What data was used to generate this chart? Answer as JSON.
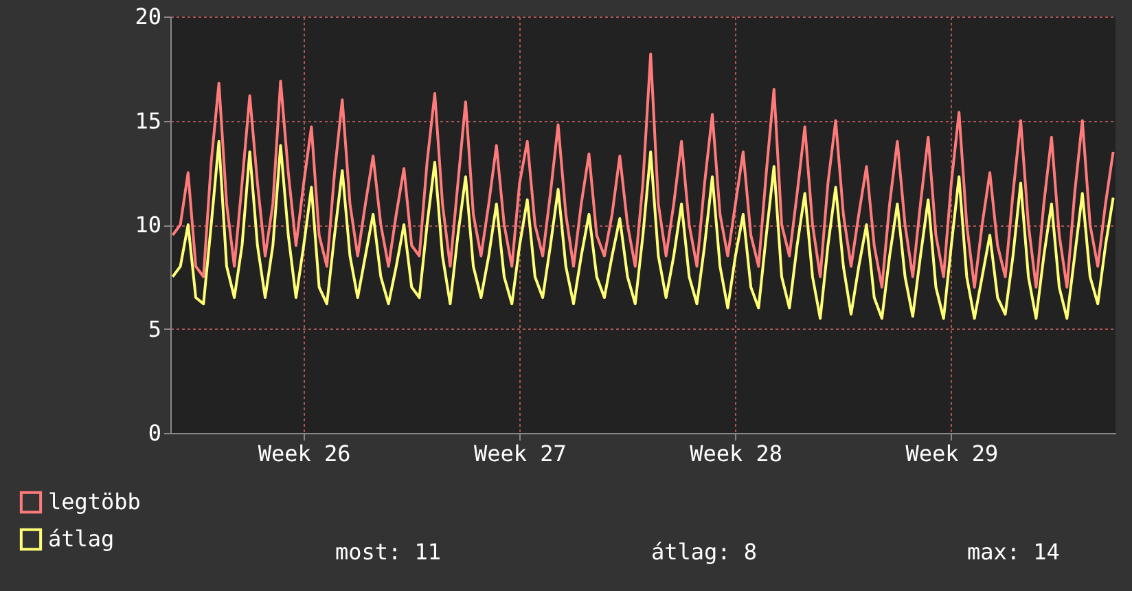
{
  "chart_data": {
    "type": "line",
    "categories": [
      null,
      null,
      null,
      null,
      null,
      null,
      null,
      null,
      null,
      null,
      null,
      null,
      null,
      null,
      null,
      null,
      null,
      "Week 26",
      null,
      null,
      null,
      null,
      null,
      null,
      null,
      null,
      null,
      null,
      null,
      null,
      null,
      null,
      null,
      null,
      null,
      null,
      null,
      null,
      null,
      null,
      null,
      null,
      null,
      null,
      null,
      "Week 27",
      null,
      null,
      null,
      null,
      null,
      null,
      null,
      null,
      null,
      null,
      null,
      null,
      null,
      null,
      null,
      null,
      null,
      null,
      null,
      null,
      null,
      null,
      null,
      null,
      null,
      null,
      null,
      "Week 28",
      null,
      null,
      null,
      null,
      null,
      null,
      null,
      null,
      null,
      null,
      null,
      null,
      null,
      null,
      null,
      null,
      null,
      null,
      null,
      null,
      null,
      null,
      null,
      null,
      null,
      null,
      null,
      "Week 29",
      null,
      null,
      null,
      null,
      null,
      null,
      null,
      null,
      null,
      null,
      null,
      null,
      null,
      null,
      null,
      null,
      null,
      null,
      null,
      null,
      null
    ],
    "series": [
      {
        "name": "legtöbb",
        "color": "#ff7b7b",
        "values": [
          9.5,
          10,
          12.5,
          8,
          7.5,
          13,
          16.8,
          11,
          8,
          12,
          16.2,
          12,
          8.5,
          11,
          16.9,
          12.5,
          9,
          12,
          14.7,
          9.5,
          8,
          12.5,
          16.0,
          11,
          8.5,
          11,
          13.3,
          10,
          8,
          10.5,
          12.7,
          9,
          8.5,
          13,
          16.3,
          11,
          8,
          12,
          15.9,
          10.5,
          8.5,
          11,
          13.8,
          10,
          8,
          12,
          14.0,
          10,
          8.5,
          11.5,
          14.8,
          10.5,
          8,
          11,
          13.4,
          9.5,
          8.5,
          10.5,
          13.3,
          10,
          8,
          12,
          18.2,
          11,
          8.5,
          11,
          14.0,
          10,
          8,
          12,
          15.3,
          10.5,
          8.5,
          11,
          13.5,
          9.5,
          8,
          12.5,
          16.5,
          10,
          8.5,
          11.5,
          14.7,
          10,
          7.5,
          12,
          15.0,
          10.5,
          8,
          10.5,
          12.8,
          9,
          7,
          11,
          14.0,
          10,
          7.5,
          11,
          14.2,
          9.5,
          7.5,
          12,
          15.4,
          10,
          7,
          10,
          12.5,
          9,
          7.5,
          11.5,
          15.0,
          10,
          7,
          11,
          14.2,
          9.5,
          7,
          11.5,
          15.0,
          10,
          8,
          11,
          13.5
        ]
      },
      {
        "name": "átlag",
        "color": "#ffff77",
        "values": [
          7.5,
          8,
          10,
          6.5,
          6.2,
          10,
          14,
          8,
          6.5,
          9,
          13.5,
          9,
          6.5,
          9,
          13.8,
          9.5,
          6.5,
          9,
          11.8,
          7,
          6.2,
          9.5,
          12.6,
          8.5,
          6.5,
          8.5,
          10.5,
          7.5,
          6.2,
          8,
          10,
          7,
          6.5,
          10,
          13,
          8.5,
          6.2,
          9.5,
          12.3,
          8,
          6.5,
          8.5,
          11,
          7.5,
          6.2,
          9,
          11.2,
          7.5,
          6.5,
          9,
          11.7,
          8,
          6.2,
          8.5,
          10.5,
          7.5,
          6.5,
          8.5,
          10.3,
          7.5,
          6.2,
          9.5,
          13.5,
          8.5,
          6.5,
          8.5,
          11,
          7.5,
          6.2,
          9,
          12.3,
          8,
          6,
          8.5,
          10.5,
          7,
          6,
          9.5,
          12.8,
          7.5,
          6,
          9,
          11.5,
          7.5,
          5.5,
          9,
          11.8,
          8,
          5.7,
          8,
          10,
          6.5,
          5.5,
          8.5,
          11,
          7.5,
          5.6,
          8.5,
          11.2,
          7,
          5.5,
          9,
          12.3,
          7.5,
          5.5,
          7.5,
          9.5,
          6.5,
          5.7,
          8.5,
          12,
          7.5,
          5.5,
          8.5,
          11,
          7,
          5.5,
          8.5,
          11.5,
          7.5,
          6.2,
          9,
          11.3
        ]
      }
    ],
    "ylim": [
      0,
      20
    ],
    "yticks": [
      0,
      5,
      10,
      15,
      20
    ],
    "grid": true,
    "legend": "bottom left",
    "line_style": "solid",
    "annotations": [
      "most: 11",
      "átlag: 8",
      "max: 14"
    ]
  }
}
